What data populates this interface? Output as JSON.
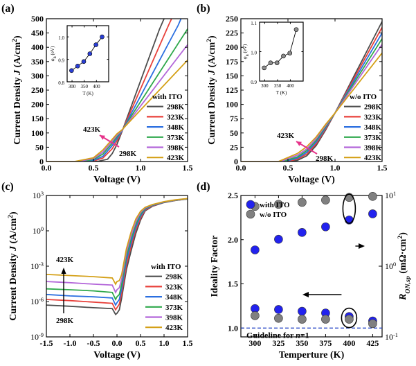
{
  "chart_data": [
    {
      "type": "line",
      "panel": "(a)",
      "xlabel": "Voltage (V)",
      "ylabel": "Current Density J (A/cm²)",
      "ylabel_parts": [
        "Current Density ",
        "J",
        " (A/cm",
        "2",
        ")"
      ],
      "xlim": [
        0.0,
        1.5
      ],
      "ylim": [
        0,
        500
      ],
      "xticks": [
        "0.0",
        "0.5",
        "1.0",
        "1.5"
      ],
      "yticks": [
        "0",
        "50",
        "100",
        "150",
        "200",
        "250",
        "300",
        "350",
        "400",
        "450",
        "500"
      ],
      "legend_title": "with ITO",
      "legend_position": "lower-right",
      "series": [
        {
          "name": "298K",
          "color": "#4d4d4d",
          "x": [
            0,
            0.45,
            0.55,
            0.65,
            0.7,
            0.75,
            0.8,
            0.9,
            1.0,
            1.1,
            1.2,
            1.25
          ],
          "y": [
            0,
            0,
            1,
            8,
            28,
            60,
            102,
            192,
            282,
            372,
            462,
            500
          ]
        },
        {
          "name": "323K",
          "color": "#e8413b",
          "x": [
            0,
            0.4,
            0.5,
            0.6,
            0.7,
            0.75,
            0.8,
            0.9,
            1.0,
            1.1,
            1.2,
            1.3,
            1.33
          ],
          "y": [
            0,
            0,
            2,
            12,
            45,
            72,
            104,
            179,
            254,
            329,
            404,
            479,
            500
          ]
        },
        {
          "name": "348K",
          "color": "#2a6fe0",
          "x": [
            0,
            0.38,
            0.5,
            0.6,
            0.7,
            0.75,
            0.8,
            0.9,
            1.0,
            1.1,
            1.2,
            1.3,
            1.4,
            1.43
          ],
          "y": [
            0,
            0,
            4,
            18,
            56,
            80,
            105,
            167,
            229,
            291,
            353,
            415,
            477,
            500
          ]
        },
        {
          "name": "373K",
          "color": "#2ea84b",
          "x": [
            0,
            0.35,
            0.5,
            0.6,
            0.7,
            0.75,
            0.8,
            0.9,
            1.0,
            1.1,
            1.2,
            1.3,
            1.4,
            1.5
          ],
          "y": [
            0,
            0,
            7,
            26,
            64,
            87,
            107,
            158,
            209,
            260,
            311,
            362,
            413,
            464
          ]
        },
        {
          "name": "398K",
          "color": "#b366d9",
          "x": [
            0,
            0.33,
            0.5,
            0.6,
            0.7,
            0.75,
            0.8,
            0.9,
            1.0,
            1.1,
            1.2,
            1.3,
            1.4,
            1.5
          ],
          "y": [
            0,
            0,
            10,
            33,
            71,
            92,
            108,
            151,
            194,
            237,
            280,
            323,
            366,
            409
          ]
        },
        {
          "name": "423K",
          "color": "#d4a017",
          "x": [
            0,
            0.3,
            0.5,
            0.6,
            0.7,
            0.75,
            0.8,
            0.9,
            1.0,
            1.1,
            1.2,
            1.3,
            1.4,
            1.5
          ],
          "y": [
            0,
            0,
            13,
            40,
            78,
            97,
            110,
            145,
            180,
            215,
            250,
            285,
            320,
            355
          ]
        }
      ],
      "annotations": [
        {
          "text": "423K"
        },
        {
          "text": "298K"
        }
      ],
      "inset": {
        "type": "scatter",
        "xlabel": "T (K)",
        "ylabel": "φB (eV)",
        "ylabel_parts": [
          "φ",
          "B",
          " (eV)"
        ],
        "xlim": [
          280,
          450
        ],
        "ylim": [
          0.8,
          1.05
        ],
        "xticks": [
          "300",
          "350",
          "400"
        ],
        "yticks": [
          "0.8",
          "0.9",
          "1.0"
        ],
        "x": [
          298,
          323,
          348,
          373,
          398,
          423
        ],
        "y": [
          0.85,
          0.87,
          0.89,
          0.925,
          0.965,
          1.0
        ]
      }
    },
    {
      "type": "line",
      "panel": "(b)",
      "xlabel": "Voltage (V)",
      "ylabel": "Current Density J (A/cm²)",
      "ylabel_parts": [
        "Current Density ",
        "J",
        " (A/cm",
        "2",
        ")"
      ],
      "xlim": [
        0.0,
        1.5
      ],
      "ylim": [
        0,
        250
      ],
      "xticks": [
        "0.0",
        "0.5",
        "1.0",
        "1.5"
      ],
      "yticks": [
        "0",
        "25",
        "50",
        "75",
        "100",
        "125",
        "150",
        "175",
        "200",
        "225",
        "250"
      ],
      "legend_title": "w/o ITO",
      "legend_position": "lower-right",
      "series": [
        {
          "name": "298K",
          "color": "#4d4d4d",
          "x": [
            0,
            0.5,
            0.6,
            0.7,
            0.8,
            0.9,
            1.0,
            1.1,
            1.2,
            1.3,
            1.4,
            1.5
          ],
          "y": [
            0,
            0,
            2,
            10,
            28,
            55,
            85,
            117,
            149,
            181,
            213,
            245
          ]
        },
        {
          "name": "323K",
          "color": "#e8413b",
          "x": [
            0,
            0.48,
            0.6,
            0.7,
            0.8,
            0.9,
            1.0,
            1.1,
            1.2,
            1.3,
            1.4,
            1.5
          ],
          "y": [
            0,
            0,
            4,
            13,
            31,
            57,
            85,
            115,
            145,
            175,
            205,
            235
          ]
        },
        {
          "name": "348K",
          "color": "#2a6fe0",
          "x": [
            0,
            0.46,
            0.6,
            0.7,
            0.8,
            0.9,
            1.0,
            1.1,
            1.2,
            1.3,
            1.4,
            1.5
          ],
          "y": [
            0,
            0,
            6,
            16,
            34,
            59,
            85,
            113,
            141,
            169,
            197,
            225
          ]
        },
        {
          "name": "373K",
          "color": "#2ea84b",
          "x": [
            0,
            0.44,
            0.6,
            0.7,
            0.8,
            0.9,
            1.0,
            1.1,
            1.2,
            1.3,
            1.4,
            1.5
          ],
          "y": [
            0,
            0,
            8,
            19,
            37,
            61,
            85,
            111,
            137,
            163,
            189,
            215
          ]
        },
        {
          "name": "398K",
          "color": "#b366d9",
          "x": [
            0,
            0.42,
            0.6,
            0.7,
            0.8,
            0.9,
            1.0,
            1.1,
            1.2,
            1.3,
            1.4,
            1.5
          ],
          "y": [
            0,
            0,
            11,
            22,
            40,
            63,
            85,
            109,
            133,
            157,
            181,
            205
          ]
        },
        {
          "name": "423K",
          "color": "#d4a017",
          "x": [
            0,
            0.4,
            0.6,
            0.7,
            0.8,
            0.9,
            1.0,
            1.1,
            1.2,
            1.3,
            1.4,
            1.5
          ],
          "y": [
            0,
            0,
            14,
            26,
            43,
            65,
            85,
            106,
            127,
            148,
            169,
            190
          ]
        }
      ],
      "annotations": [
        {
          "text": "423K"
        },
        {
          "text": "298K"
        }
      ],
      "inset": {
        "type": "scatter",
        "xlabel": "T (K)",
        "ylabel": "φB (eV)",
        "ylabel_parts": [
          "φ",
          "B",
          " (eV)"
        ],
        "xlim": [
          280,
          450
        ],
        "ylim": [
          0.9,
          1.1
        ],
        "xticks": [
          "300",
          "350",
          "400"
        ],
        "yticks": [
          "0.9",
          "1.0",
          "1.1"
        ],
        "x": [
          298,
          323,
          348,
          373,
          398,
          423
        ],
        "y": [
          0.945,
          0.962,
          0.962,
          0.985,
          0.995,
          1.075
        ]
      }
    },
    {
      "type": "line",
      "panel": "(c)",
      "xlabel": "Voltage (V)",
      "ylabel": "Current Density J (A/cm²)",
      "ylabel_parts": [
        "Current Density ",
        "J",
        " (A/cm",
        "2",
        ")"
      ],
      "xlim": [
        -1.5,
        1.5
      ],
      "ylim": [
        1e-09,
        1000
      ],
      "yscale": "log",
      "xticks": [
        "-1.5",
        "-1.0",
        "-0.5",
        "0.0",
        "0.5",
        "1.0",
        "1.5"
      ],
      "yticks": [
        {
          "base": "10",
          "exp": "-9"
        },
        {
          "base": "10",
          "exp": "-6"
        },
        {
          "base": "10",
          "exp": "-3"
        },
        {
          "base": "10",
          "exp": "0"
        },
        {
          "base": "10",
          "exp": "3"
        }
      ],
      "legend_title": "with ITO",
      "legend_position": "lower-right",
      "series": [
        {
          "name": "298K",
          "color": "#4d4d4d",
          "x": [
            -1.5,
            -1.0,
            -0.5,
            -0.1,
            -0.03,
            0.0,
            0.05,
            0.1,
            0.2,
            0.3,
            0.4,
            0.5,
            0.6,
            0.75,
            1.0,
            1.25,
            1.5
          ],
          "y": [
            5e-07,
            4e-07,
            3e-07,
            2.5e-07,
            8e-08,
            1e-07,
            2e-07,
            2e-06,
            0.0005,
            0.02,
            0.6,
            8,
            50,
            120,
            250,
            380,
            500
          ]
        },
        {
          "name": "323K",
          "color": "#e8413b",
          "x": [
            -1.5,
            -1.0,
            -0.5,
            -0.1,
            -0.03,
            0.0,
            0.05,
            0.1,
            0.2,
            0.3,
            0.4,
            0.5,
            0.6,
            0.75,
            1.0,
            1.25,
            1.5
          ],
          "y": [
            1.5e-06,
            1.2e-06,
            9e-07,
            7e-07,
            2e-07,
            3e-07,
            6e-07,
            5e-06,
            0.0012,
            0.05,
            1.2,
            12,
            60,
            130,
            260,
            390,
            510
          ]
        },
        {
          "name": "348K",
          "color": "#2a6fe0",
          "x": [
            -1.5,
            -1.0,
            -0.5,
            -0.1,
            -0.03,
            0.0,
            0.05,
            0.1,
            0.2,
            0.3,
            0.4,
            0.5,
            0.6,
            0.75,
            1.0,
            1.25,
            1.5
          ],
          "y": [
            4e-06,
            3e-06,
            2.5e-06,
            2e-06,
            5e-07,
            8e-07,
            1.5e-06,
            1.2e-05,
            0.003,
            0.1,
            2,
            18,
            70,
            140,
            270,
            400,
            520
          ]
        },
        {
          "name": "373K",
          "color": "#2ea84b",
          "x": [
            -1.5,
            -1.0,
            -0.5,
            -0.1,
            -0.03,
            0.0,
            0.05,
            0.1,
            0.2,
            0.3,
            0.4,
            0.5,
            0.6,
            0.75,
            1.0,
            1.25,
            1.5
          ],
          "y": [
            1.2e-05,
            1e-05,
            8e-06,
            6e-06,
            1.5e-06,
            2.5e-06,
            4e-06,
            3e-05,
            0.007,
            0.2,
            3.5,
            25,
            80,
            150,
            280,
            410,
            530
          ]
        },
        {
          "name": "398K",
          "color": "#b366d9",
          "x": [
            -1.5,
            -1.0,
            -0.5,
            -0.1,
            -0.03,
            0.0,
            0.05,
            0.1,
            0.2,
            0.3,
            0.4,
            0.5,
            0.6,
            0.75,
            1.0,
            1.25,
            1.5
          ],
          "y": [
            5e-05,
            4e-05,
            3e-05,
            2.5e-05,
            6e-06,
            1e-05,
            1.5e-05,
            8e-05,
            0.015,
            0.4,
            6,
            35,
            90,
            160,
            290,
            420,
            540
          ]
        },
        {
          "name": "423K",
          "color": "#d4a017",
          "x": [
            -1.5,
            -1.0,
            -0.5,
            -0.1,
            -0.03,
            0.0,
            0.05,
            0.1,
            0.2,
            0.3,
            0.4,
            0.5,
            0.6,
            0.75,
            1.0,
            1.25,
            1.5
          ],
          "y": [
            0.0002,
            0.00016,
            0.00013,
            0.0001,
            3e-05,
            5e-05,
            6e-05,
            0.0002,
            0.03,
            0.8,
            10,
            45,
            100,
            170,
            300,
            430,
            550
          ]
        }
      ],
      "annotations": [
        {
          "text": "423K"
        },
        {
          "text": "298K"
        }
      ]
    },
    {
      "type": "scatter",
      "panel": "(d)",
      "xlabel": "Temperture (K)",
      "ylabel": "Ideality Factor",
      "y2label": "RON,sp (mΩ·cm²)",
      "y2label_parts": [
        "R",
        "ON,sp",
        " (mΩ·cm",
        "2",
        ")"
      ],
      "xlim": [
        285,
        435
      ],
      "ylim": [
        0.9,
        2.5
      ],
      "y2lim": [
        0.1,
        10
      ],
      "y2scale": "log",
      "xticks": [
        "300",
        "325",
        "350",
        "375",
        "400",
        "425"
      ],
      "yticks": [
        "1.0",
        "1.5",
        "2.0",
        "2.5"
      ],
      "y2ticks": [
        {
          "base": "10",
          "exp": "-1"
        },
        {
          "base": "10",
          "exp": "0"
        },
        {
          "base": "10",
          "exp": "1"
        }
      ],
      "legend_position": "upper-left",
      "legend": [
        {
          "name": "with ITO",
          "color": "#2222ee"
        },
        {
          "name": "w/o ITO",
          "color": "#808080"
        }
      ],
      "x": [
        300,
        325,
        350,
        375,
        400,
        425
      ],
      "series": [
        {
          "group": "with ITO",
          "axis": "right",
          "values": [
            1.7,
            2.4,
            3.0,
            3.6,
            4.5,
            5.5
          ]
        },
        {
          "group": "w/o ITO",
          "axis": "right",
          "values": [
            7.0,
            7.5,
            8.0,
            8.6,
            9.4,
            9.7
          ]
        },
        {
          "group": "with ITO",
          "axis": "left",
          "values": [
            1.22,
            1.21,
            1.19,
            1.17,
            1.13,
            1.08
          ]
        },
        {
          "group": "w/o ITO",
          "axis": "left",
          "values": [
            1.14,
            1.11,
            1.1,
            1.1,
            1.1,
            1.05
          ]
        }
      ],
      "guideline": {
        "y": 1.0,
        "label_parts": [
          "Guideline for ",
          "n",
          "=1"
        ]
      }
    }
  ]
}
